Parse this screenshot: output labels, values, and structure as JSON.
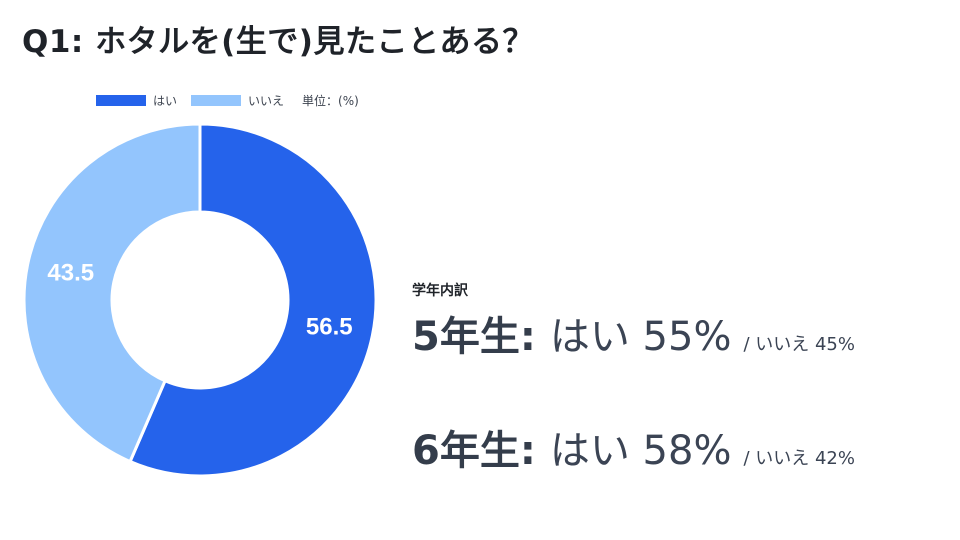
{
  "title": "Q1: ホタルを(生で)見たことある？",
  "legend": {
    "yes_label": "はい",
    "no_label": "いいえ",
    "unit": "単位：(%)"
  },
  "colors": {
    "yes": "#2563eb",
    "no": "#93c5fd"
  },
  "chart_data": {
    "type": "pie",
    "categories": [
      "はい",
      "いいえ"
    ],
    "values": [
      56.5,
      43.5
    ],
    "data_labels": [
      "56.5",
      "43.5"
    ],
    "unit": "%",
    "legend_position": "top-left"
  },
  "breakdown": {
    "label": "学年内訳",
    "rows": [
      {
        "grade": "5年生:",
        "yes": "はい 55%",
        "no": "/ いいえ 45%"
      },
      {
        "grade": "6年生:",
        "yes": "はい 58%",
        "no": "/ いいえ 42%"
      }
    ]
  }
}
